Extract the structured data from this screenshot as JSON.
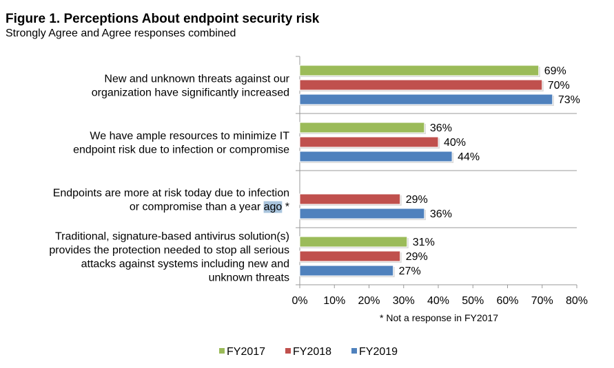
{
  "chart_data": {
    "type": "bar",
    "orientation": "horizontal",
    "title": "Figure 1. Perceptions About endpoint security risk",
    "subtitle": "Strongly Agree and Agree responses combined",
    "categories": [
      [
        "New and unknown threats against our",
        "organization have significantly increased"
      ],
      [
        "We have ample resources to minimize IT",
        "endpoint risk due to infection or compromise"
      ],
      [
        "Endpoints are more at risk today due to infection",
        "or compromise than a year ago *"
      ],
      [
        "Traditional, signature-based antivirus solution(s)",
        "provides the protection needed to stop all serious",
        "attacks against systems including new and",
        "unknown threats"
      ]
    ],
    "series": [
      {
        "name": "FY2017",
        "color": "#9bbb59",
        "values": [
          69,
          36,
          null,
          31
        ]
      },
      {
        "name": "FY2018",
        "color": "#c0504d",
        "values": [
          70,
          40,
          29,
          29
        ]
      },
      {
        "name": "FY2019",
        "color": "#4f81bd",
        "values": [
          73,
          44,
          36,
          27
        ]
      }
    ],
    "xlim": [
      0,
      80
    ],
    "xticks": [
      "0%",
      "10%",
      "20%",
      "30%",
      "40%",
      "50%",
      "60%",
      "70%",
      "80%"
    ],
    "value_suffix": "%",
    "footnote": "* Not a response in FY2017",
    "legend_position": "bottom",
    "grid": false
  }
}
